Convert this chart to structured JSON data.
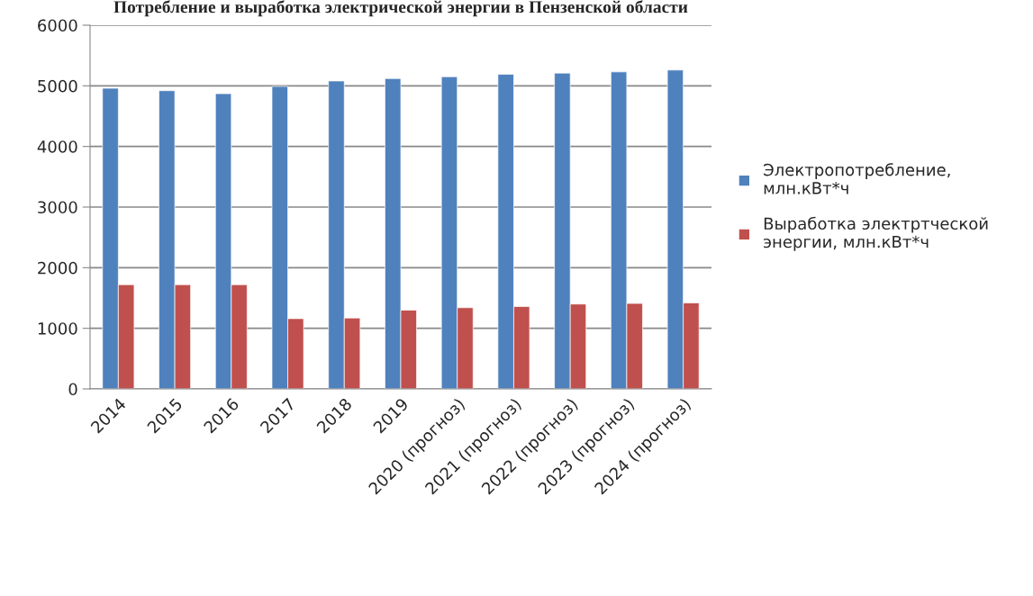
{
  "chart_data": {
    "type": "bar",
    "title": "Потребление и выработка электрической энергии в Пензенской области",
    "categories": [
      "2014",
      "2015",
      "2016",
      "2017",
      "2018",
      "2019",
      "2020 (прогноз)",
      "2021 (прогноз)",
      "2022 (прогноз)",
      "2023 (прогноз)",
      "2024 (прогноз)"
    ],
    "series": [
      {
        "name": "Электропотребление, млн.кВт*ч",
        "color": "#4f81bd",
        "values": [
          4960,
          4920,
          4870,
          4990,
          5080,
          5120,
          5150,
          5190,
          5210,
          5230,
          5260
        ]
      },
      {
        "name": "Выработка электртческой энергии, млн.кВт*ч",
        "color": "#c0504d",
        "values": [
          1720,
          1720,
          1720,
          1160,
          1170,
          1300,
          1340,
          1360,
          1400,
          1410,
          1420
        ]
      }
    ],
    "ylim": [
      0,
      6000
    ],
    "yticks": [
      0,
      1000,
      2000,
      3000,
      4000,
      5000,
      6000
    ],
    "grid": "y",
    "legend": "right"
  }
}
